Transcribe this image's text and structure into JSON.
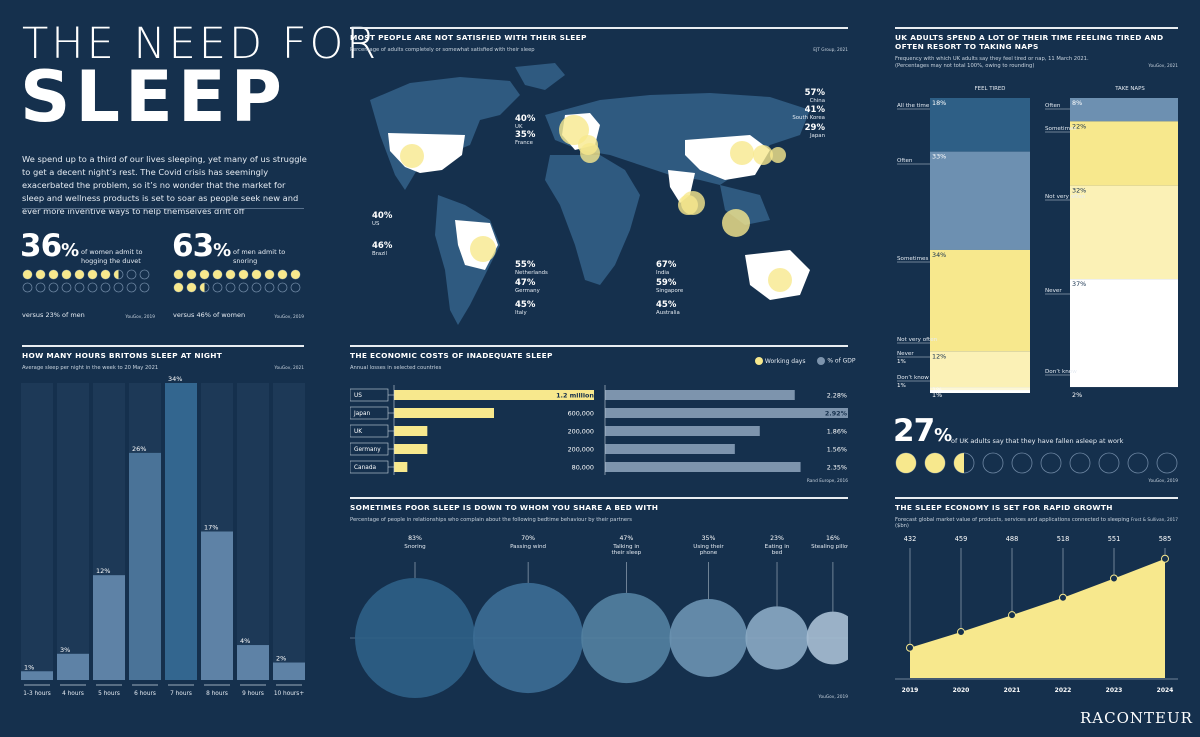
{
  "header": {
    "line1": "THE NEED FOR",
    "line2": "SLEEP",
    "intro": "We spend up to a third of our lives sleeping, yet many of us struggle to get a decent night’s rest. The Covid crisis has seemingly exacerbated the problem, so it’s no wonder that the market for sleep and wellness products is set to soar as people seek new and ever more inventive ways to help themselves drift off"
  },
  "duvet": {
    "pct": "36",
    "sign": "%",
    "text": "of women admit to hogging the duvet",
    "versus": "versus 23% of men",
    "fill": 0.36
  },
  "snoring": {
    "pct": "63",
    "sign": "%",
    "text": "of men admit to snoring",
    "versus": "versus 46% of women",
    "fill": 0.63
  },
  "yougov2019": "YouGov, 2019",
  "hours": {
    "title": "How many hours Britons sleep at night",
    "sub": "Average sleep per night in the week to 20 May 2021",
    "source": "YouGov, 2021"
  },
  "satisfied": {
    "title": "Most people are not satisfied with their sleep",
    "sub": "Percentage of adults completely or somewhat satisfied with their sleep",
    "source": "EJT Group, 2021",
    "countries": [
      {
        "name": "US",
        "pct": "40%"
      },
      {
        "name": "Brazil",
        "pct": "46%"
      },
      {
        "name": "UK",
        "pct": "40%"
      },
      {
        "name": "France",
        "pct": "35%"
      },
      {
        "name": "Netherlands",
        "pct": "55%"
      },
      {
        "name": "Germany",
        "pct": "47%"
      },
      {
        "name": "Italy",
        "pct": "45%"
      },
      {
        "name": "China",
        "pct": "57%"
      },
      {
        "name": "South Korea",
        "pct": "41%"
      },
      {
        "name": "Japan",
        "pct": "29%"
      },
      {
        "name": "India",
        "pct": "67%"
      },
      {
        "name": "Singapore",
        "pct": "59%"
      },
      {
        "name": "Australia",
        "pct": "45%"
      }
    ]
  },
  "econ": {
    "title": "The economic costs of inadequate sleep",
    "sub": "Annual losses in selected countries",
    "legend_days": "Working days",
    "legend_gdp": "% of GDP",
    "source": "Rand Europe, 2016"
  },
  "bed": {
    "title": "Sometimes poor sleep is down to whom you share a bed with",
    "sub": "Percentage of people in relationships who complain about the following bedtime behaviour by their partners",
    "source": "YouGov, 2019"
  },
  "tired": {
    "title": "UK adults spend a lot of their time feeling tired and often resort to taking naps",
    "sub1": "Frequency with which UK adults say they feel tired or nap, 11 March 2021.",
    "sub2": "(Percentages may not total 100%, owing to rounding)",
    "source": "YouGov, 2021",
    "col1": "FEEL TIRED",
    "col2": "TAKE NAPS"
  },
  "asleep": {
    "pct": "27",
    "sign": "%",
    "text": "of UK adults say that they have fallen asleep at work",
    "fill": 0.27,
    "source": "YouGov, 2019"
  },
  "economy": {
    "title": "The sleep economy is set for rapid growth",
    "sub": "Forecast global market value of products, services and applications connected to sleeping ($bn)",
    "source": "Frost & Sullivan, 2017"
  },
  "brand": "RACONTEUR",
  "chart_data": [
    {
      "type": "bar",
      "title": "How many hours Britons sleep at night",
      "categories": [
        "1-3 hours",
        "4 hours",
        "5 hours",
        "6 hours",
        "7 hours",
        "8 hours",
        "9 hours",
        "10 hours+"
      ],
      "values": [
        1,
        3,
        12,
        26,
        34,
        17,
        4,
        2
      ],
      "labels": [
        "1%",
        "3%",
        "12%",
        "26%",
        "34%",
        "17%",
        "4%",
        "2%"
      ],
      "ylim": [
        0,
        34
      ]
    },
    {
      "type": "bar",
      "title": "The economic costs of inadequate sleep",
      "categories": [
        "US",
        "Japan",
        "UK",
        "Germany",
        "Canada"
      ],
      "series": [
        {
          "name": "Working days",
          "values": [
            1200000,
            600000,
            200000,
            200000,
            80000
          ],
          "labels": [
            "1.2 million",
            "600,000",
            "200,000",
            "200,000",
            "80,000"
          ]
        },
        {
          "name": "% of GDP",
          "values": [
            2.28,
            2.92,
            1.86,
            1.56,
            2.35
          ],
          "labels": [
            "2.28%",
            "2.92%",
            "1.86%",
            "1.56%",
            "2.35%"
          ]
        }
      ]
    },
    {
      "type": "bar",
      "title": "Sometimes poor sleep is down to whom you share a bed with",
      "categories": [
        "Snoring",
        "Passing wind",
        "Talking in their sleep",
        "Using their phone",
        "Eating in bed",
        "Stealing pillows"
      ],
      "values": [
        83,
        70,
        47,
        35,
        23,
        16
      ],
      "labels": [
        "83%",
        "70%",
        "47%",
        "35%",
        "23%",
        "16%"
      ]
    },
    {
      "type": "bar",
      "title": "UK adults spend a lot of their time feeling tired and often resort to taking naps",
      "series": [
        {
          "name": "FEEL TIRED",
          "categories": [
            "All the time",
            "Often",
            "Sometimes",
            "Not very often",
            "Never",
            "Don’t know"
          ],
          "values": [
            18,
            33,
            34,
            12,
            1,
            1
          ],
          "labels": [
            "18%",
            "33%",
            "34%",
            "12%",
            "1%",
            "1%"
          ]
        },
        {
          "name": "TAKE NAPS",
          "categories": [
            "Often",
            "Sometimes",
            "Not very often",
            "Never",
            "Don’t know"
          ],
          "values": [
            8,
            22,
            32,
            37,
            2
          ],
          "labels": [
            "8%",
            "22%",
            "32%",
            "37%",
            "2%"
          ]
        }
      ]
    },
    {
      "type": "area",
      "title": "The sleep economy is set for rapid growth",
      "x": [
        "2019",
        "2020",
        "2021",
        "2022",
        "2023",
        "2024"
      ],
      "values": [
        432,
        459,
        488,
        518,
        551,
        585
      ]
    }
  ]
}
